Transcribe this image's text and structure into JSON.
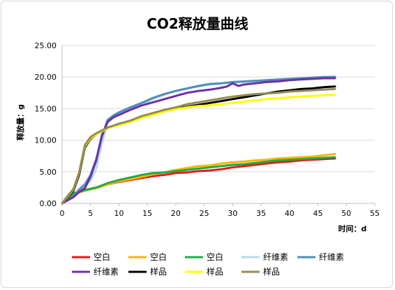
{
  "chart_data": {
    "type": "line",
    "title": "CO2释放量曲线",
    "xlabel": "时间：d",
    "ylabel": "释放量：g",
    "xlim": [
      0,
      55
    ],
    "ylim": [
      0,
      25
    ],
    "x_ticks": [
      "0",
      "5",
      "10",
      "15",
      "20",
      "25",
      "30",
      "35",
      "40",
      "45",
      "50",
      "55"
    ],
    "y_ticks": [
      "0.00",
      "5.00",
      "10.00",
      "15.00",
      "20.00",
      "25.00"
    ],
    "grid": "horizontal",
    "legend_position": "bottom",
    "series": [
      {
        "name": "空白",
        "color": "#e8191b",
        "x": [
          0,
          2,
          4,
          6,
          8,
          10,
          12,
          14,
          16,
          18,
          20,
          22,
          24,
          26,
          28,
          30,
          32,
          34,
          36,
          38,
          40,
          42,
          44,
          46,
          48
        ],
        "y": [
          0,
          1.5,
          2.1,
          2.5,
          3.0,
          3.4,
          3.7,
          4.0,
          4.3,
          4.5,
          4.8,
          4.9,
          5.1,
          5.2,
          5.4,
          5.7,
          5.9,
          6.1,
          6.3,
          6.5,
          6.6,
          6.8,
          6.9,
          7.0,
          7.1
        ]
      },
      {
        "name": "空白",
        "color": "#f5b800",
        "x": [
          0,
          2,
          4,
          6,
          8,
          10,
          12,
          14,
          16,
          18,
          20,
          22,
          24,
          26,
          28,
          30,
          32,
          34,
          36,
          38,
          40,
          42,
          44,
          46,
          48
        ],
        "y": [
          0,
          1.4,
          2.0,
          2.4,
          3.0,
          3.5,
          3.8,
          4.2,
          4.6,
          4.9,
          5.3,
          5.6,
          5.9,
          6.0,
          6.3,
          6.5,
          6.6,
          6.8,
          6.9,
          7.1,
          7.2,
          7.3,
          7.4,
          7.6,
          7.8
        ]
      },
      {
        "name": "空白",
        "color": "#1faa4a",
        "x": [
          0,
          2,
          4,
          6,
          8,
          10,
          12,
          14,
          16,
          18,
          20,
          22,
          24,
          26,
          28,
          30,
          32,
          34,
          36,
          38,
          40,
          42,
          44,
          46,
          48
        ],
        "y": [
          0,
          1.6,
          2.1,
          2.5,
          3.2,
          3.7,
          4.1,
          4.5,
          4.8,
          4.9,
          5.1,
          5.3,
          5.5,
          5.7,
          5.9,
          6.1,
          6.2,
          6.4,
          6.6,
          6.8,
          6.9,
          7.0,
          7.1,
          7.2,
          7.3
        ]
      },
      {
        "name": "纤维素",
        "color": "#b7d9ec",
        "x": [
          0,
          2,
          3,
          4,
          5,
          6,
          7,
          8,
          9,
          10,
          12,
          14,
          16,
          18,
          20,
          22,
          24,
          26,
          28,
          30,
          32,
          34,
          36,
          38,
          40,
          42,
          44,
          46,
          48
        ],
        "y": [
          0,
          1.0,
          2.0,
          2.8,
          3.6,
          5.5,
          9.5,
          12.8,
          13.6,
          14.1,
          14.9,
          15.6,
          16.5,
          17.2,
          17.8,
          18.2,
          18.5,
          18.8,
          19.0,
          19.1,
          19.2,
          19.3,
          19.5,
          19.6,
          19.7,
          19.8,
          19.9,
          20.0,
          20.1
        ]
      },
      {
        "name": "纤维素",
        "color": "#4e8fb5",
        "x": [
          0,
          2,
          3,
          4,
          5,
          6,
          7,
          8,
          9,
          10,
          12,
          14,
          16,
          18,
          20,
          22,
          24,
          26,
          28,
          30,
          32,
          34,
          36,
          38,
          40,
          42,
          44,
          46,
          48
        ],
        "y": [
          0,
          1.1,
          2.2,
          3.0,
          4.5,
          7.0,
          10.5,
          13.2,
          13.9,
          14.4,
          15.2,
          15.9,
          16.7,
          17.3,
          17.8,
          18.2,
          18.6,
          18.9,
          19.0,
          19.2,
          19.3,
          19.4,
          19.5,
          19.6,
          19.7,
          19.8,
          19.9,
          20.0,
          20.0
        ]
      },
      {
        "name": "纤维素",
        "color": "#6c2fa8",
        "x": [
          0,
          2,
          3,
          4,
          5,
          6,
          7,
          8,
          9,
          10,
          12,
          14,
          16,
          18,
          20,
          22,
          24,
          26,
          28,
          29,
          30,
          31,
          32,
          34,
          36,
          38,
          40,
          42,
          44,
          46,
          48
        ],
        "y": [
          0,
          1.0,
          1.8,
          2.4,
          4.2,
          6.8,
          10.8,
          12.9,
          13.6,
          14.0,
          14.8,
          15.5,
          16.0,
          16.5,
          17.0,
          17.5,
          17.8,
          18.0,
          18.3,
          18.5,
          19.0,
          18.6,
          18.8,
          19.0,
          19.2,
          19.3,
          19.5,
          19.6,
          19.7,
          19.8,
          19.8
        ]
      },
      {
        "name": "样品",
        "color": "#000000",
        "x": [
          0,
          1,
          2,
          3,
          4,
          5,
          6,
          8,
          10,
          12,
          14,
          16,
          18,
          20,
          22,
          24,
          26,
          28,
          30,
          32,
          34,
          36,
          38,
          40,
          42,
          44,
          46,
          48
        ],
        "y": [
          0,
          1.0,
          2.0,
          4.5,
          8.8,
          10.2,
          10.9,
          11.9,
          12.6,
          13.0,
          13.6,
          14.1,
          14.6,
          15.0,
          15.3,
          15.6,
          15.9,
          16.2,
          16.5,
          16.8,
          17.1,
          17.4,
          17.7,
          17.9,
          18.1,
          18.2,
          18.4,
          18.5
        ]
      },
      {
        "name": "样品",
        "color": "#ffff00",
        "x": [
          0,
          1,
          2,
          3,
          4,
          5,
          6,
          8,
          10,
          12,
          14,
          16,
          18,
          20,
          22,
          24,
          26,
          28,
          30,
          32,
          34,
          36,
          38,
          40,
          42,
          44,
          46,
          48
        ],
        "y": [
          0,
          1.1,
          2.2,
          4.8,
          9.0,
          10.3,
          10.9,
          11.9,
          12.4,
          12.9,
          13.5,
          14.0,
          14.5,
          14.9,
          15.2,
          15.4,
          15.5,
          15.7,
          15.9,
          16.1,
          16.3,
          16.5,
          16.6,
          16.8,
          16.9,
          17.0,
          17.1,
          17.2
        ]
      },
      {
        "name": "样品",
        "color": "#948a54",
        "x": [
          0,
          1,
          2,
          3,
          4,
          5,
          6,
          8,
          10,
          12,
          14,
          16,
          18,
          20,
          22,
          24,
          26,
          28,
          30,
          32,
          34,
          36,
          38,
          40,
          42,
          44,
          46,
          48
        ],
        "y": [
          0,
          1.2,
          2.3,
          4.9,
          9.2,
          10.5,
          11.1,
          12.0,
          12.6,
          13.1,
          13.8,
          14.3,
          14.8,
          15.2,
          15.7,
          16.0,
          16.3,
          16.6,
          16.9,
          17.1,
          17.3,
          17.4,
          17.5,
          17.7,
          17.8,
          17.9,
          18.0,
          18.1
        ]
      }
    ]
  }
}
